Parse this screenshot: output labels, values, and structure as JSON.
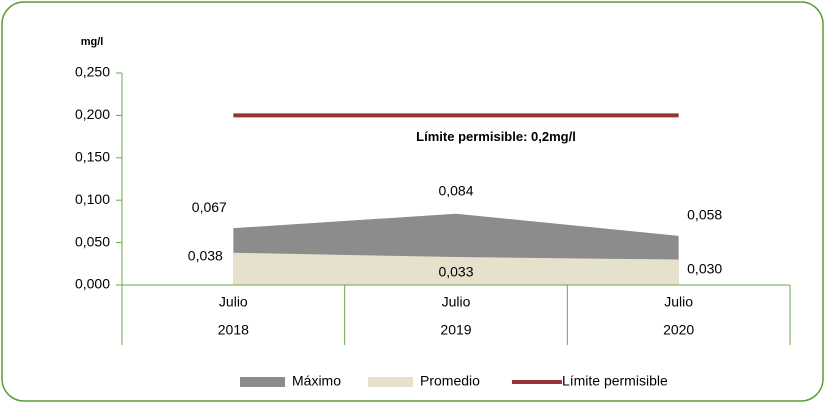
{
  "chart_data": {
    "type": "area",
    "y_label": "mg/l",
    "categories": [
      [
        "Julio",
        "2018"
      ],
      [
        "Julio",
        "2019"
      ],
      [
        "Julio",
        "2020"
      ]
    ],
    "series": [
      {
        "name": "Máximo",
        "color": "#8c8c8c",
        "values": [
          0.067,
          0.084,
          0.058
        ],
        "value_labels": [
          "0,067",
          "0,084",
          "0,058"
        ]
      },
      {
        "name": "Promedio",
        "color": "#e6e1cc",
        "values": [
          0.038,
          0.033,
          0.03
        ],
        "value_labels": [
          "0,038",
          "0,033",
          "0,030"
        ]
      },
      {
        "name": "Límite permisible",
        "color": "#943634",
        "type": "line",
        "values": [
          0.2,
          0.2,
          0.2
        ]
      }
    ],
    "annotation": "Límite permisible: 0,2mg/l",
    "ylim": [
      0,
      0.25
    ],
    "yticks": [
      {
        "value": 0,
        "label": "0,000"
      },
      {
        "value": 0.05,
        "label": "0,050"
      },
      {
        "value": 0.1,
        "label": "0,100"
      },
      {
        "value": 0.15,
        "label": "0,150"
      },
      {
        "value": 0.2,
        "label": "0,200"
      },
      {
        "value": 0.25,
        "label": "0,250"
      }
    ],
    "legend": "bottom"
  }
}
